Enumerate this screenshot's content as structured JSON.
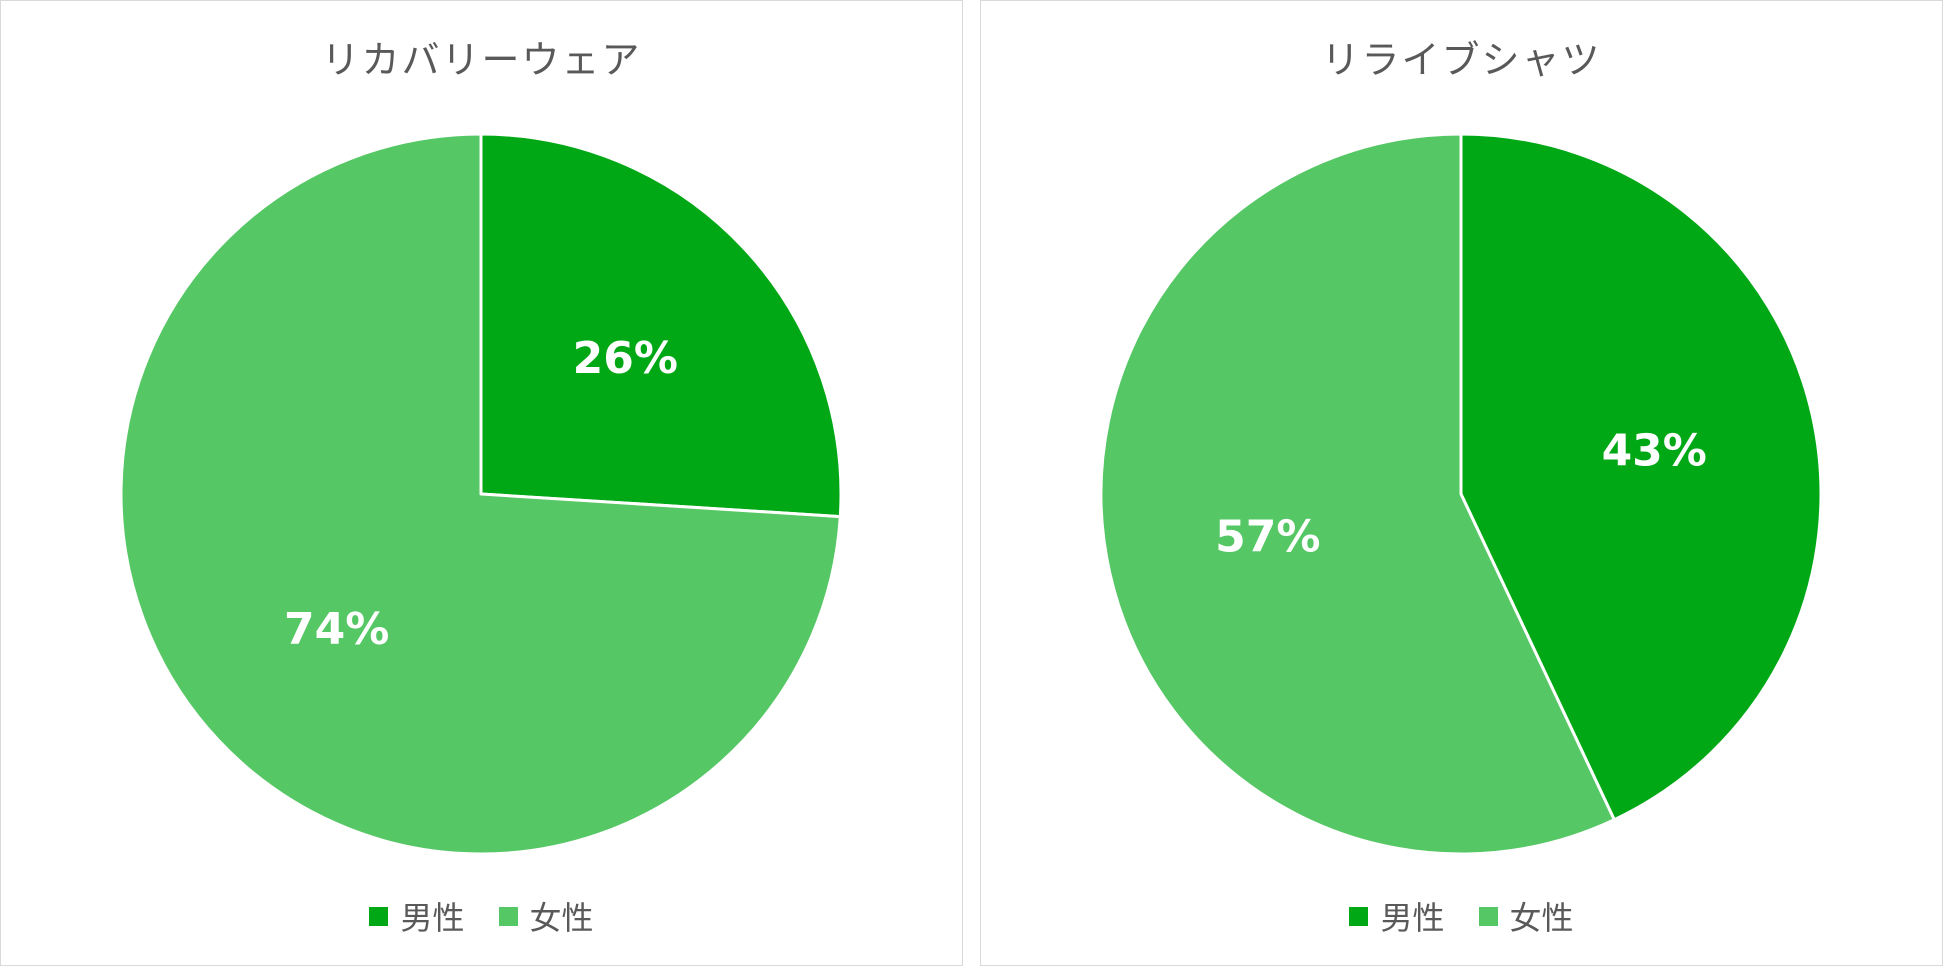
{
  "colors": {
    "male": "#00a816",
    "female": "#56c765",
    "border": "#ffffff"
  },
  "chart_data": [
    {
      "type": "pie",
      "title": "リカバリーウェア",
      "slices": [
        {
          "name": "男性",
          "value": 26,
          "label": "26%"
        },
        {
          "name": "女性",
          "value": 74,
          "label": "74%"
        }
      ],
      "legend": [
        "男性",
        "女性"
      ],
      "legend_position": "bottom"
    },
    {
      "type": "pie",
      "title": "リライブシャツ",
      "slices": [
        {
          "name": "男性",
          "value": 43,
          "label": "43%"
        },
        {
          "name": "女性",
          "value": 57,
          "label": "57%"
        }
      ],
      "legend": [
        "男性",
        "女性"
      ],
      "legend_position": "bottom"
    }
  ]
}
